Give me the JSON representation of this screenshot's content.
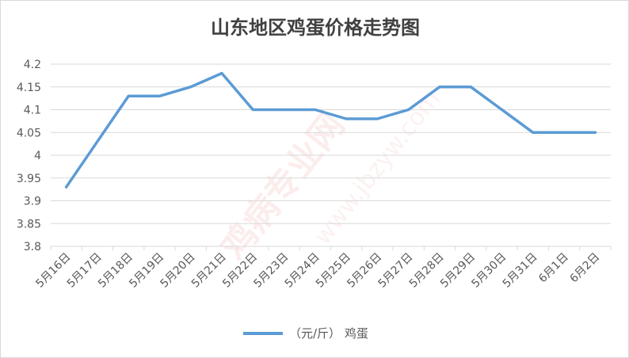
{
  "chart_data": {
    "type": "line",
    "title": "山东地区鸡蛋价格走势图",
    "categories": [
      "5月16日",
      "5月17日",
      "5月18日",
      "5月19日",
      "5月20日",
      "5月21日",
      "5月22日",
      "5月23日",
      "5月24日",
      "5月25日",
      "5月26日",
      "5月27日",
      "5月28日",
      "5月29日",
      "5月30日",
      "5月31日",
      "6月1日",
      "6月2日"
    ],
    "series": [
      {
        "name": "（元/斤） 鸡蛋",
        "values": [
          3.93,
          4.03,
          4.13,
          4.13,
          4.15,
          4.18,
          4.1,
          4.1,
          4.1,
          4.08,
          4.08,
          4.1,
          4.15,
          4.15,
          4.1,
          4.05,
          4.05,
          4.05
        ],
        "color": "#5b9bd5"
      }
    ],
    "yticks": [
      "3.8",
      "3.85",
      "3.9",
      "3.95",
      "4",
      "4.05",
      "4.1",
      "4.15",
      "4.2"
    ],
    "ylim": [
      3.8,
      4.2
    ],
    "grid": true,
    "legend_position": "bottom"
  },
  "watermark": {
    "main": "鸡病专业网",
    "url": "www.jbzyw.com"
  }
}
